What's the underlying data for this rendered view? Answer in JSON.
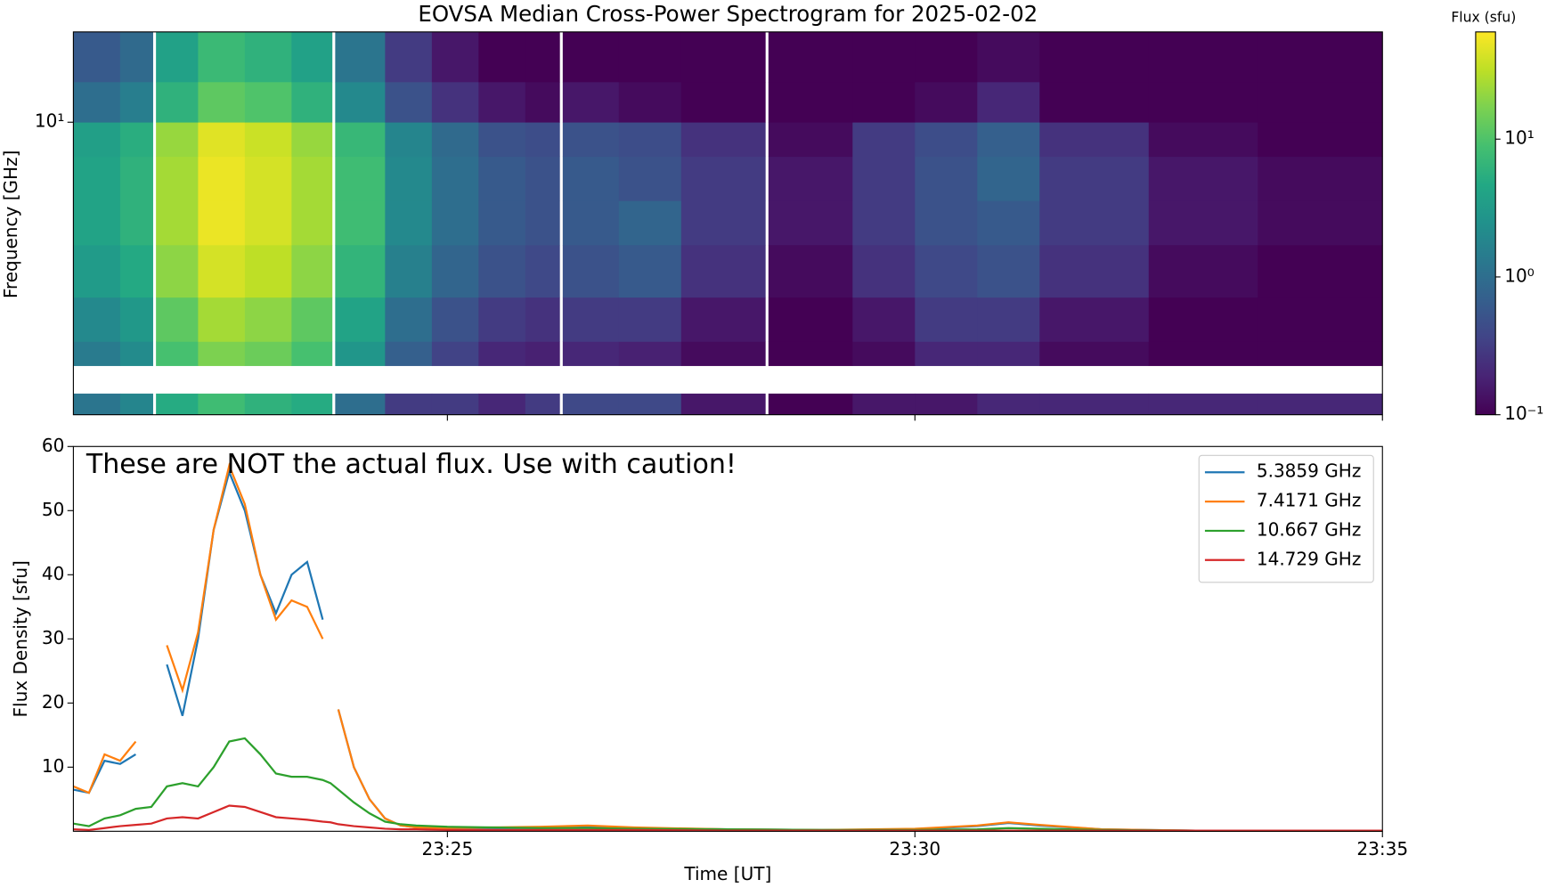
{
  "chart_data": [
    {
      "type": "heatmap",
      "title": "EOVSA Median Cross-Power Spectrogram for 2025-02-02",
      "ylabel": "Frequency [GHz]",
      "x_edges": [
        "23:21:00",
        "23:21:30",
        "23:21:51",
        "23:21:53",
        "23:22:20",
        "23:22:50",
        "23:23:20",
        "23:23:46",
        "23:23:48",
        "23:24:20",
        "23:24:50",
        "23:25:20",
        "23:25:50",
        "23:26:12",
        "23:26:14",
        "23:26:50",
        "23:27:30",
        "23:28:24",
        "23:28:26",
        "23:29:20",
        "23:30:00",
        "23:30:40",
        "23:31:20",
        "23:32:30",
        "23:33:40",
        "23:35:00"
      ],
      "y_edges": [
        1.49,
        1.71,
        2.05,
        2.4,
        3.2,
        4.5,
        6,
        8,
        10,
        13,
        18
      ],
      "z": [
        [
          1.2,
          1.8,
          null,
          5,
          8,
          6,
          5,
          null,
          1,
          0.3,
          0.3,
          0.2,
          0.3,
          null,
          0.4,
          0.4,
          0.15,
          null,
          0.1,
          0.15,
          0.15,
          0.2,
          0.2,
          0.2,
          0.2
        ],
        [
          null,
          null,
          null,
          null,
          null,
          null,
          null,
          null,
          null,
          null,
          null,
          null,
          null,
          null,
          null,
          null,
          null,
          null,
          null,
          null,
          null,
          null,
          null,
          null,
          null
        ],
        [
          1.4,
          2.1,
          null,
          9,
          17,
          14,
          9,
          null,
          2.8,
          0.7,
          0.35,
          0.2,
          0.18,
          null,
          0.2,
          0.18,
          0.12,
          null,
          0.1,
          0.12,
          0.2,
          0.2,
          0.12,
          0.1,
          0.1
        ],
        [
          2,
          3,
          null,
          12,
          25,
          20,
          12,
          null,
          4,
          1,
          0.5,
          0.3,
          0.25,
          null,
          0.3,
          0.3,
          0.15,
          null,
          0.1,
          0.15,
          0.3,
          0.3,
          0.15,
          0.1,
          0.1
        ],
        [
          3.2,
          4.8,
          null,
          20,
          40,
          32,
          20,
          null,
          6.4,
          1.6,
          0.8,
          0.5,
          0.4,
          null,
          0.5,
          0.6,
          0.25,
          null,
          0.12,
          0.25,
          0.4,
          0.5,
          0.25,
          0.12,
          0.1
        ],
        [
          4,
          6,
          null,
          25,
          50,
          40,
          25,
          null,
          8,
          2,
          1,
          0.6,
          0.5,
          null,
          0.6,
          0.8,
          0.3,
          null,
          0.15,
          0.3,
          0.5,
          0.6,
          0.3,
          0.15,
          0.12
        ],
        [
          4,
          6,
          null,
          25,
          50,
          40,
          25,
          null,
          8,
          2,
          1,
          0.6,
          0.5,
          null,
          0.6,
          0.5,
          0.3,
          null,
          0.15,
          0.3,
          0.5,
          0.8,
          0.3,
          0.15,
          0.12
        ],
        [
          3.6,
          5.4,
          null,
          22,
          45,
          36,
          22,
          null,
          7,
          1.8,
          0.9,
          0.5,
          0.45,
          null,
          0.5,
          0.45,
          0.25,
          null,
          0.12,
          0.3,
          0.45,
          0.7,
          0.25,
          0.12,
          0.1
        ],
        [
          1,
          1.5,
          null,
          6,
          12,
          10,
          6,
          null,
          2,
          0.5,
          0.25,
          0.15,
          0.12,
          null,
          0.15,
          0.12,
          0.1,
          null,
          0.1,
          0.1,
          0.12,
          0.2,
          0.1,
          0.1,
          0.1
        ],
        [
          0.6,
          0.9,
          null,
          3.8,
          7.5,
          6,
          3.8,
          null,
          1.2,
          0.3,
          0.15,
          0.1,
          0.1,
          null,
          0.1,
          0.1,
          0.1,
          null,
          0.1,
          0.1,
          0.1,
          0.12,
          0.1,
          0.1,
          0.1
        ]
      ],
      "xlim": [
        "23:21:00",
        "23:35:00"
      ],
      "ylim": [
        1.49,
        18
      ],
      "ylog": true,
      "yticks": [
        {
          "value": 10,
          "label": "10¹"
        }
      ],
      "colorbar": {
        "label": "Flux (sfu)",
        "log": true,
        "colormap": "viridis",
        "lim": [
          0.1,
          60
        ],
        "ticks": [
          {
            "value": 0.1,
            "label": "10⁻¹"
          },
          {
            "value": 1,
            "label": "10⁰"
          },
          {
            "value": 10,
            "label": "10¹"
          }
        ]
      }
    },
    {
      "type": "line",
      "xlabel": "Time [UT]",
      "ylabel": "Flux Density [sfu]",
      "annotation": "These are NOT the actual flux. Use with caution!",
      "x": [
        "23:21:00",
        "23:21:10",
        "23:21:20",
        "23:21:30",
        "23:21:40",
        "23:21:50",
        "23:22:00",
        "23:22:10",
        "23:22:20",
        "23:22:30",
        "23:22:40",
        "23:22:50",
        "23:23:00",
        "23:23:10",
        "23:23:20",
        "23:23:30",
        "23:23:40",
        "23:23:45",
        "23:23:50",
        "23:24:00",
        "23:24:10",
        "23:24:20",
        "23:24:30",
        "23:24:40",
        "23:25:00",
        "23:26:00",
        "23:26:30",
        "23:27:00",
        "23:28:00",
        "23:29:00",
        "23:30:00",
        "23:30:40",
        "23:31:00",
        "23:31:20",
        "23:32:00",
        "23:33:00",
        "23:34:00",
        "23:35:00"
      ],
      "series": [
        {
          "name": "5.3859 GHz",
          "color": "#1f77b4",
          "values": [
            6.5,
            6,
            11,
            10.5,
            12,
            null,
            26,
            18,
            30,
            47,
            56,
            50,
            40,
            34,
            40,
            42,
            33,
            null,
            19,
            10,
            5,
            2,
            0.9,
            0.6,
            0.5,
            0.5,
            0.6,
            0.5,
            0.3,
            0.2,
            0.3,
            0.8,
            1.3,
            0.9,
            0.3,
            0.1,
            0.1,
            0.1
          ]
        },
        {
          "name": "7.4171 GHz",
          "color": "#ff7f0e",
          "values": [
            7,
            6,
            12,
            11,
            14,
            null,
            29,
            22,
            31,
            47,
            57,
            51,
            40,
            33,
            36,
            35,
            30,
            null,
            19,
            10,
            5,
            2,
            0.9,
            0.6,
            0.5,
            0.7,
            0.9,
            0.6,
            0.3,
            0.2,
            0.4,
            0.9,
            1.4,
            1.0,
            0.3,
            0.1,
            0.1,
            0.1
          ]
        },
        {
          "name": "10.667 GHz",
          "color": "#2ca02c",
          "values": [
            1.2,
            0.8,
            2,
            2.5,
            3.5,
            3.8,
            7,
            7.5,
            7,
            10,
            14,
            14.5,
            12,
            9,
            8.5,
            8.5,
            8,
            7.5,
            6.5,
            4.5,
            2.8,
            1.5,
            1.1,
            0.9,
            0.7,
            0.5,
            0.5,
            0.4,
            0.3,
            0.2,
            0.2,
            0.3,
            0.5,
            0.4,
            0.2,
            0.1,
            0.1,
            0.1
          ]
        },
        {
          "name": "14.729 GHz",
          "color": "#d62728",
          "values": [
            0.3,
            0.2,
            0.5,
            0.8,
            1,
            1.2,
            2,
            2.2,
            2,
            3,
            4,
            3.8,
            3,
            2.2,
            2,
            1.8,
            1.5,
            1.4,
            1.1,
            0.8,
            0.6,
            0.4,
            0.3,
            0.3,
            0.2,
            0.2,
            0.2,
            0.2,
            0.1,
            0.1,
            0.1,
            0.1,
            0.1,
            0.1,
            0.1,
            0.1,
            0.1,
            0.1
          ]
        }
      ],
      "xlim": [
        "23:21:00",
        "23:35:00"
      ],
      "xticks": [
        "23:25",
        "23:30",
        "23:35"
      ],
      "ylim": [
        0,
        60
      ],
      "yticks": [
        10,
        20,
        30,
        40,
        50,
        60
      ],
      "legend": "upper right"
    }
  ]
}
